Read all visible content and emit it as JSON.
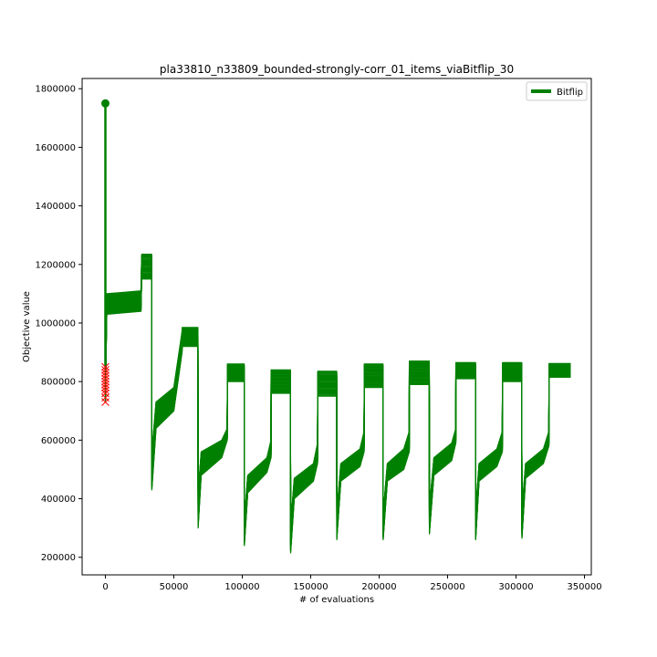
{
  "chart_data": {
    "type": "line",
    "title": "pla33810_n33809_bounded-strongly-corr_01_items_viaBitflip_30",
    "xlabel": "# of evaluations",
    "ylabel": "Objective value",
    "xlim": [
      -17000,
      355000
    ],
    "ylim": [
      140000,
      1835000
    ],
    "x_ticks": [
      0,
      50000,
      100000,
      150000,
      200000,
      250000,
      300000,
      350000
    ],
    "x_tick_labels": [
      "0",
      "50000",
      "100000",
      "150000",
      "200000",
      "250000",
      "300000",
      "350000"
    ],
    "y_ticks": [
      200000,
      400000,
      600000,
      800000,
      1000000,
      1200000,
      1400000,
      1600000,
      1800000
    ],
    "y_tick_labels": [
      "200000",
      "400000",
      "600000",
      "800000",
      "1000000",
      "1200000",
      "1400000",
      "1600000",
      "1800000"
    ],
    "grid": false,
    "legend": {
      "position": "top-right",
      "entries": [
        "Bitflip"
      ]
    },
    "series": [
      {
        "name": "Bitflip",
        "color": "#008000",
        "runs": 30,
        "start": {
          "x": 0,
          "y": 1750000,
          "marker": "circle"
        },
        "x": [
          0,
          500,
          1000,
          26000,
          26500,
          33800,
          33900,
          37000,
          50000,
          56000,
          56100,
          67600,
          67700,
          70000,
          85000,
          89000,
          89100,
          101400,
          101500,
          104000,
          118000,
          121000,
          121100,
          135200,
          135300,
          138000,
          152000,
          155000,
          155100,
          169000,
          169100,
          172000,
          186000,
          189000,
          189100,
          202800,
          202900,
          206000,
          218000,
          222000,
          222100,
          236600,
          236700,
          240000,
          253000,
          256000,
          256100,
          270400,
          270500,
          273000,
          286000,
          290000,
          290100,
          304200,
          304300,
          307000,
          320000,
          324000,
          324100,
          340000
        ],
        "y_min": [
          730000,
          900000,
          1030000,
          1040000,
          1150000,
          1150000,
          430000,
          640000,
          700000,
          900000,
          920000,
          920000,
          300000,
          480000,
          540000,
          600000,
          800000,
          800000,
          240000,
          420000,
          490000,
          540000,
          760000,
          760000,
          215000,
          400000,
          460000,
          520000,
          750000,
          750000,
          260000,
          460000,
          510000,
          560000,
          780000,
          780000,
          260000,
          460000,
          500000,
          560000,
          790000,
          790000,
          280000,
          480000,
          530000,
          590000,
          810000,
          810000,
          260000,
          460000,
          510000,
          560000,
          800000,
          800000,
          265000,
          470000,
          520000,
          580000,
          815000,
          815000
        ],
        "y_max": [
          850000,
          1000000,
          1100000,
          1110000,
          1235000,
          1235000,
          560000,
          730000,
          780000,
          970000,
          985000,
          985000,
          420000,
          560000,
          600000,
          640000,
          860000,
          860000,
          330000,
          480000,
          540000,
          600000,
          840000,
          840000,
          310000,
          470000,
          520000,
          590000,
          835000,
          835000,
          350000,
          520000,
          570000,
          630000,
          860000,
          860000,
          350000,
          520000,
          570000,
          630000,
          870000,
          870000,
          370000,
          540000,
          590000,
          640000,
          865000,
          865000,
          360000,
          520000,
          570000,
          630000,
          865000,
          865000,
          360000,
          520000,
          570000,
          630000,
          862000,
          862000
        ],
        "initial_points": [
          730000,
          745000,
          760000,
          770000,
          780000,
          790000,
          800000,
          810000,
          820000,
          830000,
          840000,
          850000
        ]
      }
    ]
  }
}
